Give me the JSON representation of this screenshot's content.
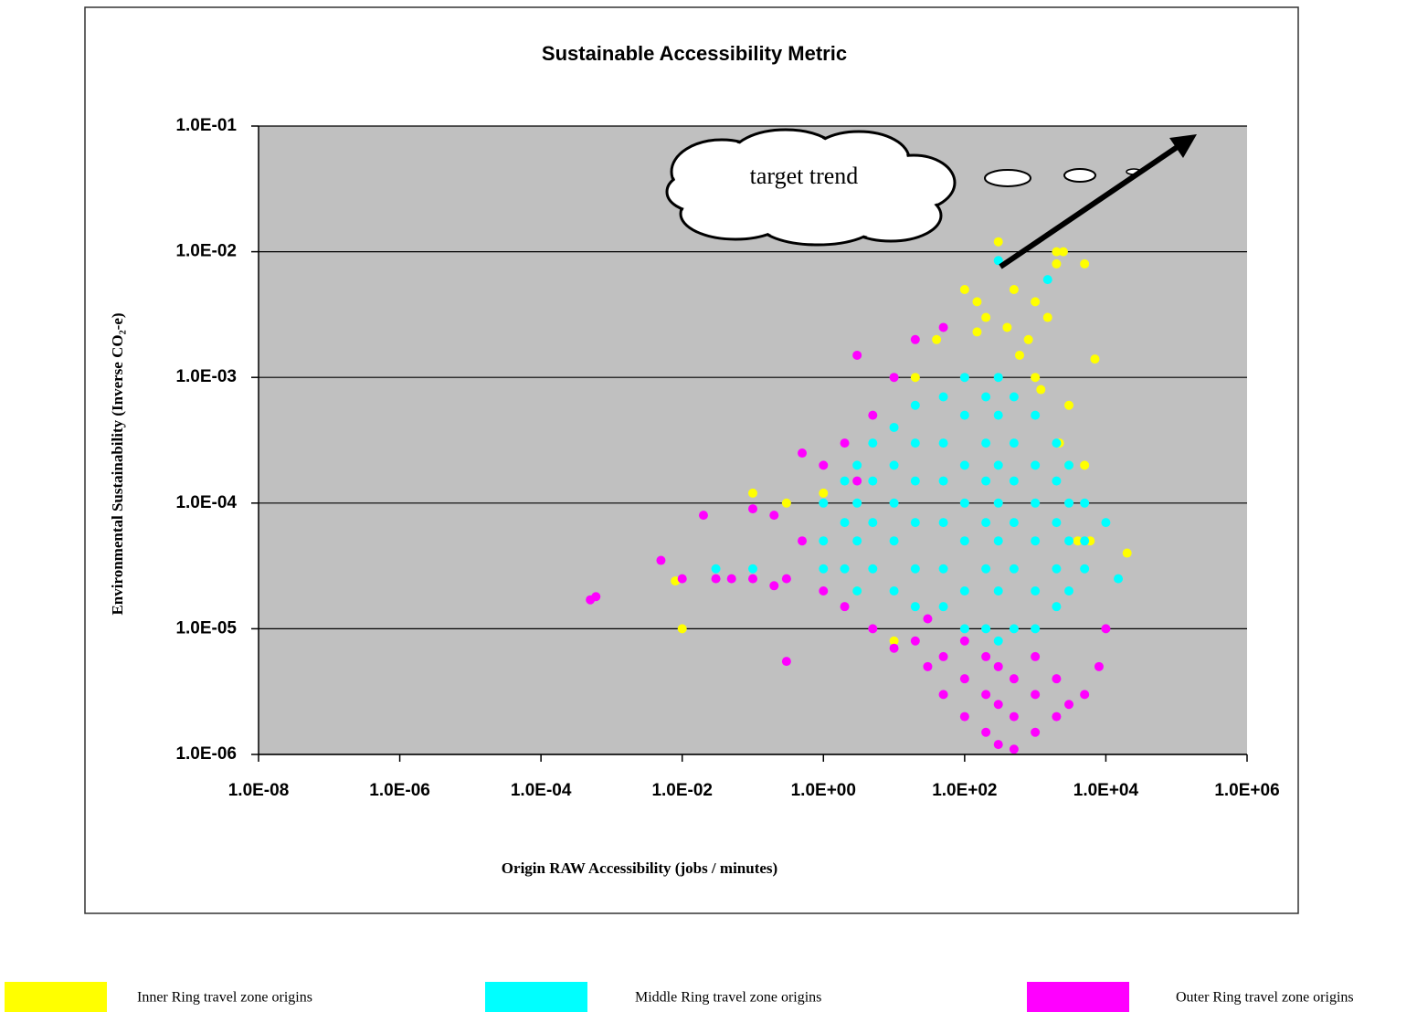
{
  "chart_data": {
    "type": "scatter",
    "title": "Sustainable Accessibility Metric",
    "x_label": "Origin RAW Accessibility (jobs / minutes)",
    "y_label": "Environmental Sustainability (Inverse CO₂-e)",
    "xscale": "log",
    "yscale": "log",
    "xlim": [
      1e-08,
      1000000.0
    ],
    "ylim": [
      1e-06,
      0.1
    ],
    "xticks": [
      {
        "value": 1e-08,
        "label": "1.0E-08"
      },
      {
        "value": 1e-06,
        "label": "1.0E-06"
      },
      {
        "value": 0.0001,
        "label": "1.0E-04"
      },
      {
        "value": 0.01,
        "label": "1.0E-02"
      },
      {
        "value": 1,
        "label": "1.0E+00"
      },
      {
        "value": 100,
        "label": "1.0E+02"
      },
      {
        "value": 10000,
        "label": "1.0E+04"
      },
      {
        "value": 1000000,
        "label": "1.0E+06"
      }
    ],
    "yticks": [
      {
        "value": 1e-06,
        "label": "1.0E-06"
      },
      {
        "value": 1e-05,
        "label": "1.0E-05"
      },
      {
        "value": 0.0001,
        "label": "1.0E-04"
      },
      {
        "value": 0.001,
        "label": "1.0E-03"
      },
      {
        "value": 0.01,
        "label": "1.0E-02"
      },
      {
        "value": 0.1,
        "label": "1.0E-01"
      }
    ],
    "grid": true,
    "legend_position": "bottom",
    "annotations": [
      {
        "text": "target trend"
      }
    ],
    "series": [
      {
        "name": "Inner Ring travel zone origins",
        "color": "#ffff00",
        "x": [
          300,
          500,
          1000,
          1500,
          2000,
          2500,
          1000,
          800,
          600,
          400,
          200,
          1200,
          3000,
          5000,
          150,
          100,
          40,
          20,
          3000,
          4000,
          0.01,
          0.008,
          0.1,
          0.3,
          1,
          3,
          10,
          6000,
          5000,
          20000,
          7000,
          150,
          2000,
          2200
        ],
        "values": [
          0.012,
          0.005,
          0.004,
          0.003,
          0.01,
          0.01,
          0.001,
          0.002,
          0.0015,
          0.0025,
          0.003,
          0.0008,
          0.0006,
          0.008,
          0.004,
          0.005,
          0.002,
          0.001,
          0.0002,
          5e-05,
          1e-05,
          2.4e-05,
          0.00012,
          0.0001,
          0.00012,
          2e-05,
          8e-06,
          5e-05,
          0.0002,
          4e-05,
          0.0014,
          0.0023,
          0.008,
          0.0003
        ]
      },
      {
        "name": "Middle Ring travel zone origins",
        "color": "#00ffff",
        "x": [
          1,
          1,
          1,
          2,
          2,
          2,
          3,
          3,
          3,
          3,
          5,
          5,
          5,
          5,
          10,
          10,
          10,
          10,
          10,
          20,
          20,
          20,
          20,
          20,
          20,
          50,
          50,
          50,
          50,
          50,
          50,
          100,
          100,
          100,
          100,
          100,
          100,
          100,
          200,
          200,
          200,
          200,
          200,
          200,
          300,
          300,
          300,
          300,
          300,
          300,
          300,
          500,
          500,
          500,
          500,
          500,
          500,
          1000,
          1000,
          1000,
          1000,
          1000,
          1000,
          2000,
          2000,
          2000,
          2000,
          2000,
          3000,
          3000,
          3000,
          3000,
          5000,
          5000,
          5000,
          10000,
          15000,
          0.1,
          0.03,
          300,
          1500
        ],
        "values": [
          3e-05,
          5e-05,
          0.0001,
          3e-05,
          7e-05,
          0.00015,
          2e-05,
          5e-05,
          0.0001,
          0.0002,
          3e-05,
          7e-05,
          0.00015,
          0.0003,
          2e-05,
          5e-05,
          0.0001,
          0.0002,
          0.0004,
          1.5e-05,
          3e-05,
          7e-05,
          0.00015,
          0.0003,
          0.0006,
          1.5e-05,
          3e-05,
          7e-05,
          0.00015,
          0.0003,
          0.0007,
          1e-05,
          2e-05,
          5e-05,
          0.0001,
          0.0002,
          0.0005,
          0.001,
          1e-05,
          3e-05,
          7e-05,
          0.00015,
          0.0003,
          0.0007,
          8e-06,
          2e-05,
          5e-05,
          0.0001,
          0.0002,
          0.0005,
          0.001,
          1e-05,
          3e-05,
          7e-05,
          0.00015,
          0.0003,
          0.0007,
          1e-05,
          2e-05,
          5e-05,
          0.0001,
          0.0002,
          0.0005,
          1.5e-05,
          3e-05,
          7e-05,
          0.00015,
          0.0003,
          2e-05,
          5e-05,
          0.0001,
          0.0002,
          3e-05,
          5e-05,
          0.0001,
          7e-05,
          2.5e-05,
          3e-05,
          3e-05,
          0.0085,
          0.006
        ]
      },
      {
        "name": "Outer Ring travel zone origins",
        "color": "#ff00ff",
        "x": [
          0.0005,
          0.0006,
          0.005,
          0.01,
          0.02,
          0.03,
          0.05,
          0.1,
          0.2,
          0.3,
          0.5,
          0.5,
          0.3,
          1,
          2,
          3,
          3,
          5,
          5,
          10,
          10,
          20,
          20,
          30,
          30,
          50,
          50,
          50,
          100,
          100,
          100,
          200,
          200,
          200,
          300,
          300,
          300,
          500,
          500,
          500,
          1000,
          1000,
          1000,
          2000,
          2000,
          3000,
          5000,
          8000,
          10000,
          1,
          2,
          0.1,
          0.2
        ],
        "values": [
          1.7e-05,
          1.8e-05,
          3.5e-05,
          2.5e-05,
          8e-05,
          2.5e-05,
          2.5e-05,
          9e-05,
          8e-05,
          2.5e-05,
          5e-05,
          0.00025,
          5.5e-06,
          2e-05,
          1.5e-05,
          0.00015,
          0.0015,
          1e-05,
          0.0005,
          7e-06,
          0.001,
          8e-06,
          0.002,
          5e-06,
          1.2e-05,
          3e-06,
          6e-06,
          0.0025,
          2e-06,
          4e-06,
          8e-06,
          1.5e-06,
          3e-06,
          6e-06,
          1.2e-06,
          2.5e-06,
          5e-06,
          1.1e-06,
          2e-06,
          4e-06,
          1.5e-06,
          3e-06,
          6e-06,
          2e-06,
          4e-06,
          2.5e-06,
          3e-06,
          5e-06,
          1e-05,
          0.0002,
          0.0003,
          2.5e-05,
          2.2e-05
        ]
      }
    ]
  }
}
